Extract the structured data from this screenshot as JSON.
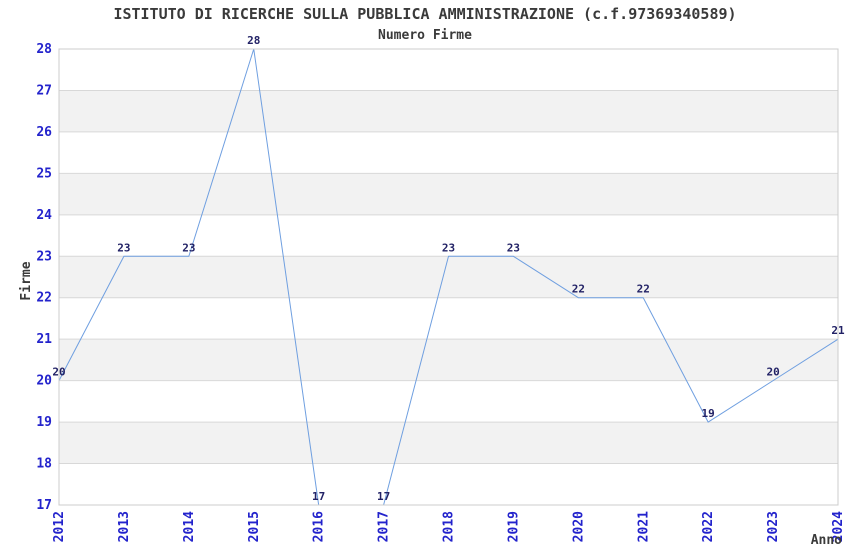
{
  "header": {
    "title": "ISTITUTO DI RICERCHE SULLA PUBBLICA AMMINISTRAZIONE (c.f.97369340589)",
    "subtitle": "Numero Firme"
  },
  "chart_data": {
    "type": "line",
    "title": "ISTITUTO DI RICERCHE SULLA PUBBLICA AMMINISTRAZIONE (c.f.97369340589)",
    "subtitle": "Numero Firme",
    "xlabel": "Anno",
    "ylabel": "Firme",
    "x": [
      2012,
      2013,
      2014,
      2015,
      2016,
      2017,
      2018,
      2019,
      2020,
      2021,
      2022,
      2023,
      2024
    ],
    "series": [
      {
        "name": "Numero Firme",
        "values": [
          20,
          23,
          23,
          28,
          17,
          17,
          23,
          23,
          22,
          22,
          19,
          20,
          21
        ]
      }
    ],
    "values": [
      20,
      23,
      23,
      28,
      17,
      17,
      23,
      23,
      22,
      22,
      19,
      20,
      21
    ],
    "ylim": [
      17,
      28
    ],
    "yticks": [
      17,
      18,
      19,
      20,
      21,
      22,
      23,
      24,
      25,
      26,
      27,
      28
    ],
    "grid": "horizontal gridlines with alternating shaded bands",
    "legend": "none",
    "point_labels_shown": true,
    "colors": {
      "line": "#6f9fe0",
      "tick_label": "#2323cc",
      "value_label": "#222266",
      "band": "#f2f2f2",
      "grid": "#d8d8d8",
      "border": "#cccccc",
      "text": "#3a3a3a"
    }
  }
}
